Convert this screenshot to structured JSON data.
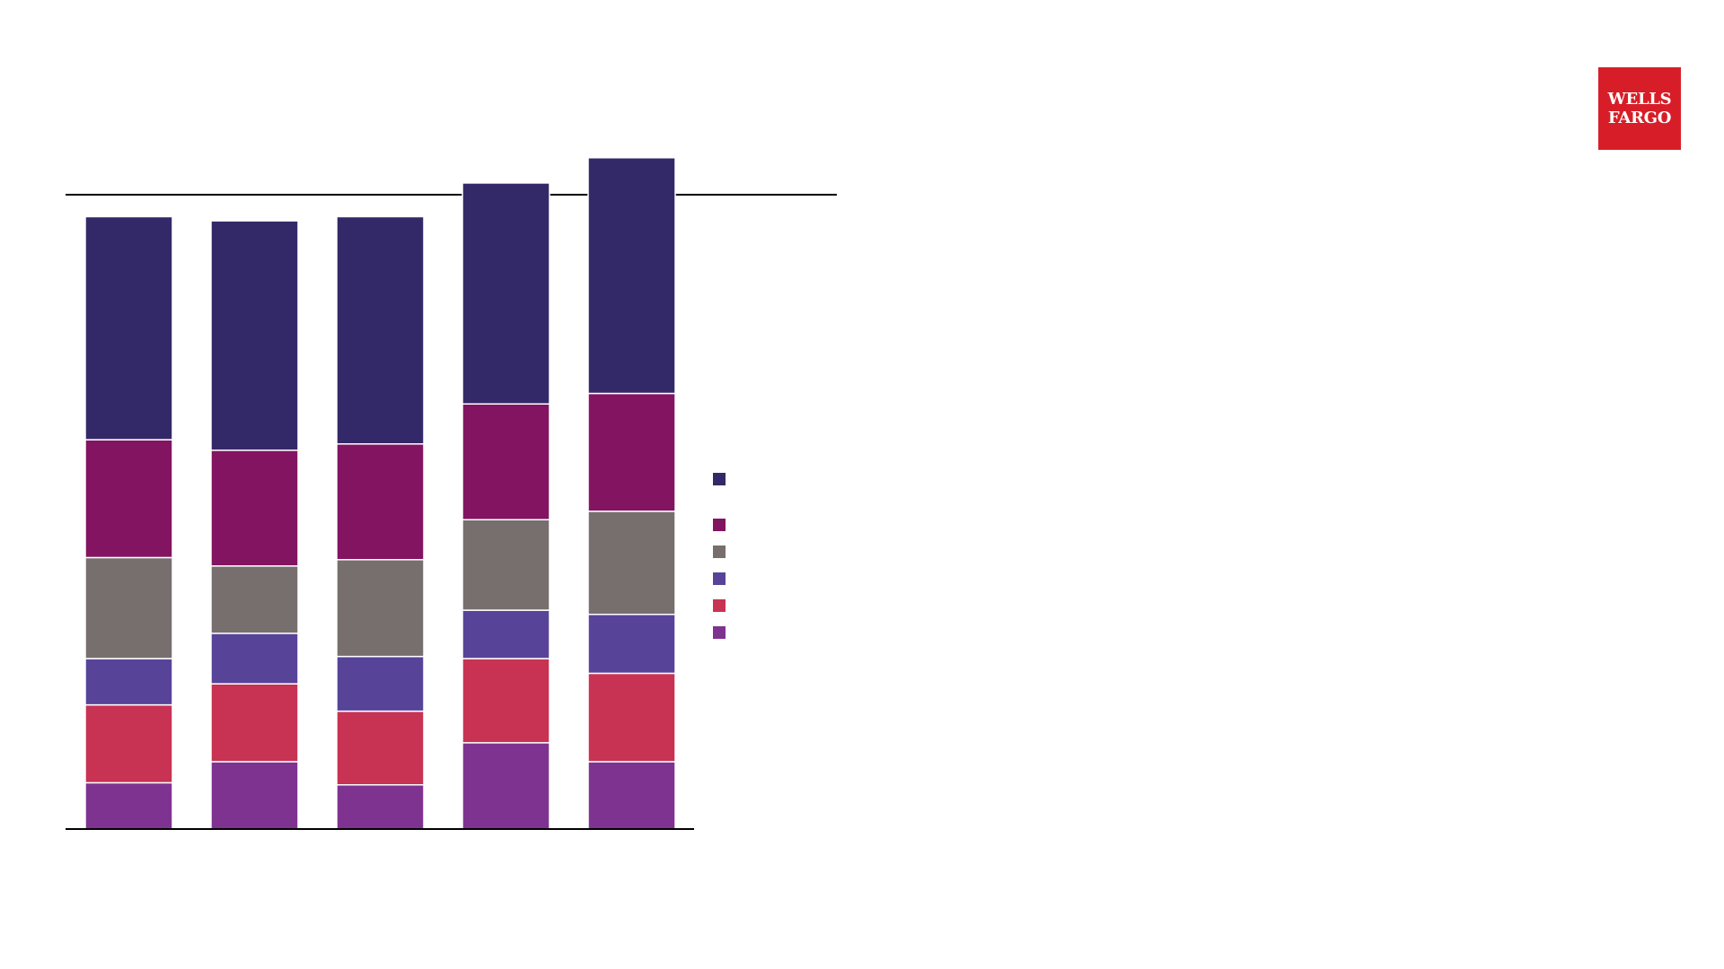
{
  "logo": {
    "line1": "WELLS",
    "line2": "FARGO",
    "color": "#d71e28"
  },
  "chart_data": {
    "type": "bar",
    "stacked": true,
    "categories": [
      "",
      "",
      "",
      "",
      ""
    ],
    "series": [
      {
        "color": "#7f3391",
        "values": [
          22,
          32,
          21,
          41,
          32
        ]
      },
      {
        "color": "#c83253",
        "values": [
          37,
          37,
          35,
          40,
          42
        ]
      },
      {
        "color": "#574499",
        "values": [
          22,
          24,
          26,
          23,
          28
        ]
      },
      {
        "color": "#776e6e",
        "values": [
          48,
          32,
          46,
          43,
          49
        ]
      },
      {
        "color": "#831461",
        "values": [
          56,
          55,
          55,
          55,
          56
        ]
      },
      {
        "color": "#342968",
        "values": [
          106,
          109,
          108,
          105,
          112
        ]
      }
    ],
    "legend_position": "right",
    "grid": false,
    "ylim": [
      0,
      330
    ]
  }
}
